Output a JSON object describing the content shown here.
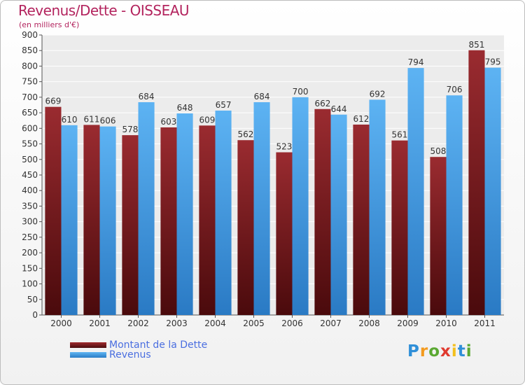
{
  "header": {
    "title": "Revenus/Dette - OISSEAU",
    "subtitle": "(en milliers d'€)"
  },
  "colors": {
    "dette": "#7a1f24",
    "revenus": "#3d9ae6",
    "title": "#b3245e"
  },
  "chart_data": {
    "type": "bar",
    "categories": [
      "2000",
      "2001",
      "2002",
      "2003",
      "2004",
      "2005",
      "2006",
      "2007",
      "2008",
      "2009",
      "2010",
      "2011"
    ],
    "series": [
      {
        "name": "Montant de la Dette",
        "values": [
          669,
          611,
          578,
          603,
          609,
          562,
          523,
          662,
          612,
          561,
          508,
          851
        ]
      },
      {
        "name": "Revenus",
        "values": [
          610,
          606,
          684,
          648,
          657,
          684,
          700,
          644,
          692,
          794,
          706,
          795
        ]
      }
    ],
    "ylim": [
      0,
      900
    ],
    "yticks": [
      0,
      50,
      100,
      150,
      200,
      250,
      300,
      350,
      400,
      450,
      500,
      550,
      600,
      650,
      700,
      750,
      800,
      850,
      900
    ],
    "grid": true,
    "legend_position": "bottom-left"
  },
  "legend": {
    "items": [
      {
        "label": "Montant de la Dette"
      },
      {
        "label": "Revenus"
      }
    ]
  },
  "logo": {
    "letters": [
      "P",
      "r",
      "o",
      "x",
      "i",
      "t",
      "i"
    ]
  }
}
